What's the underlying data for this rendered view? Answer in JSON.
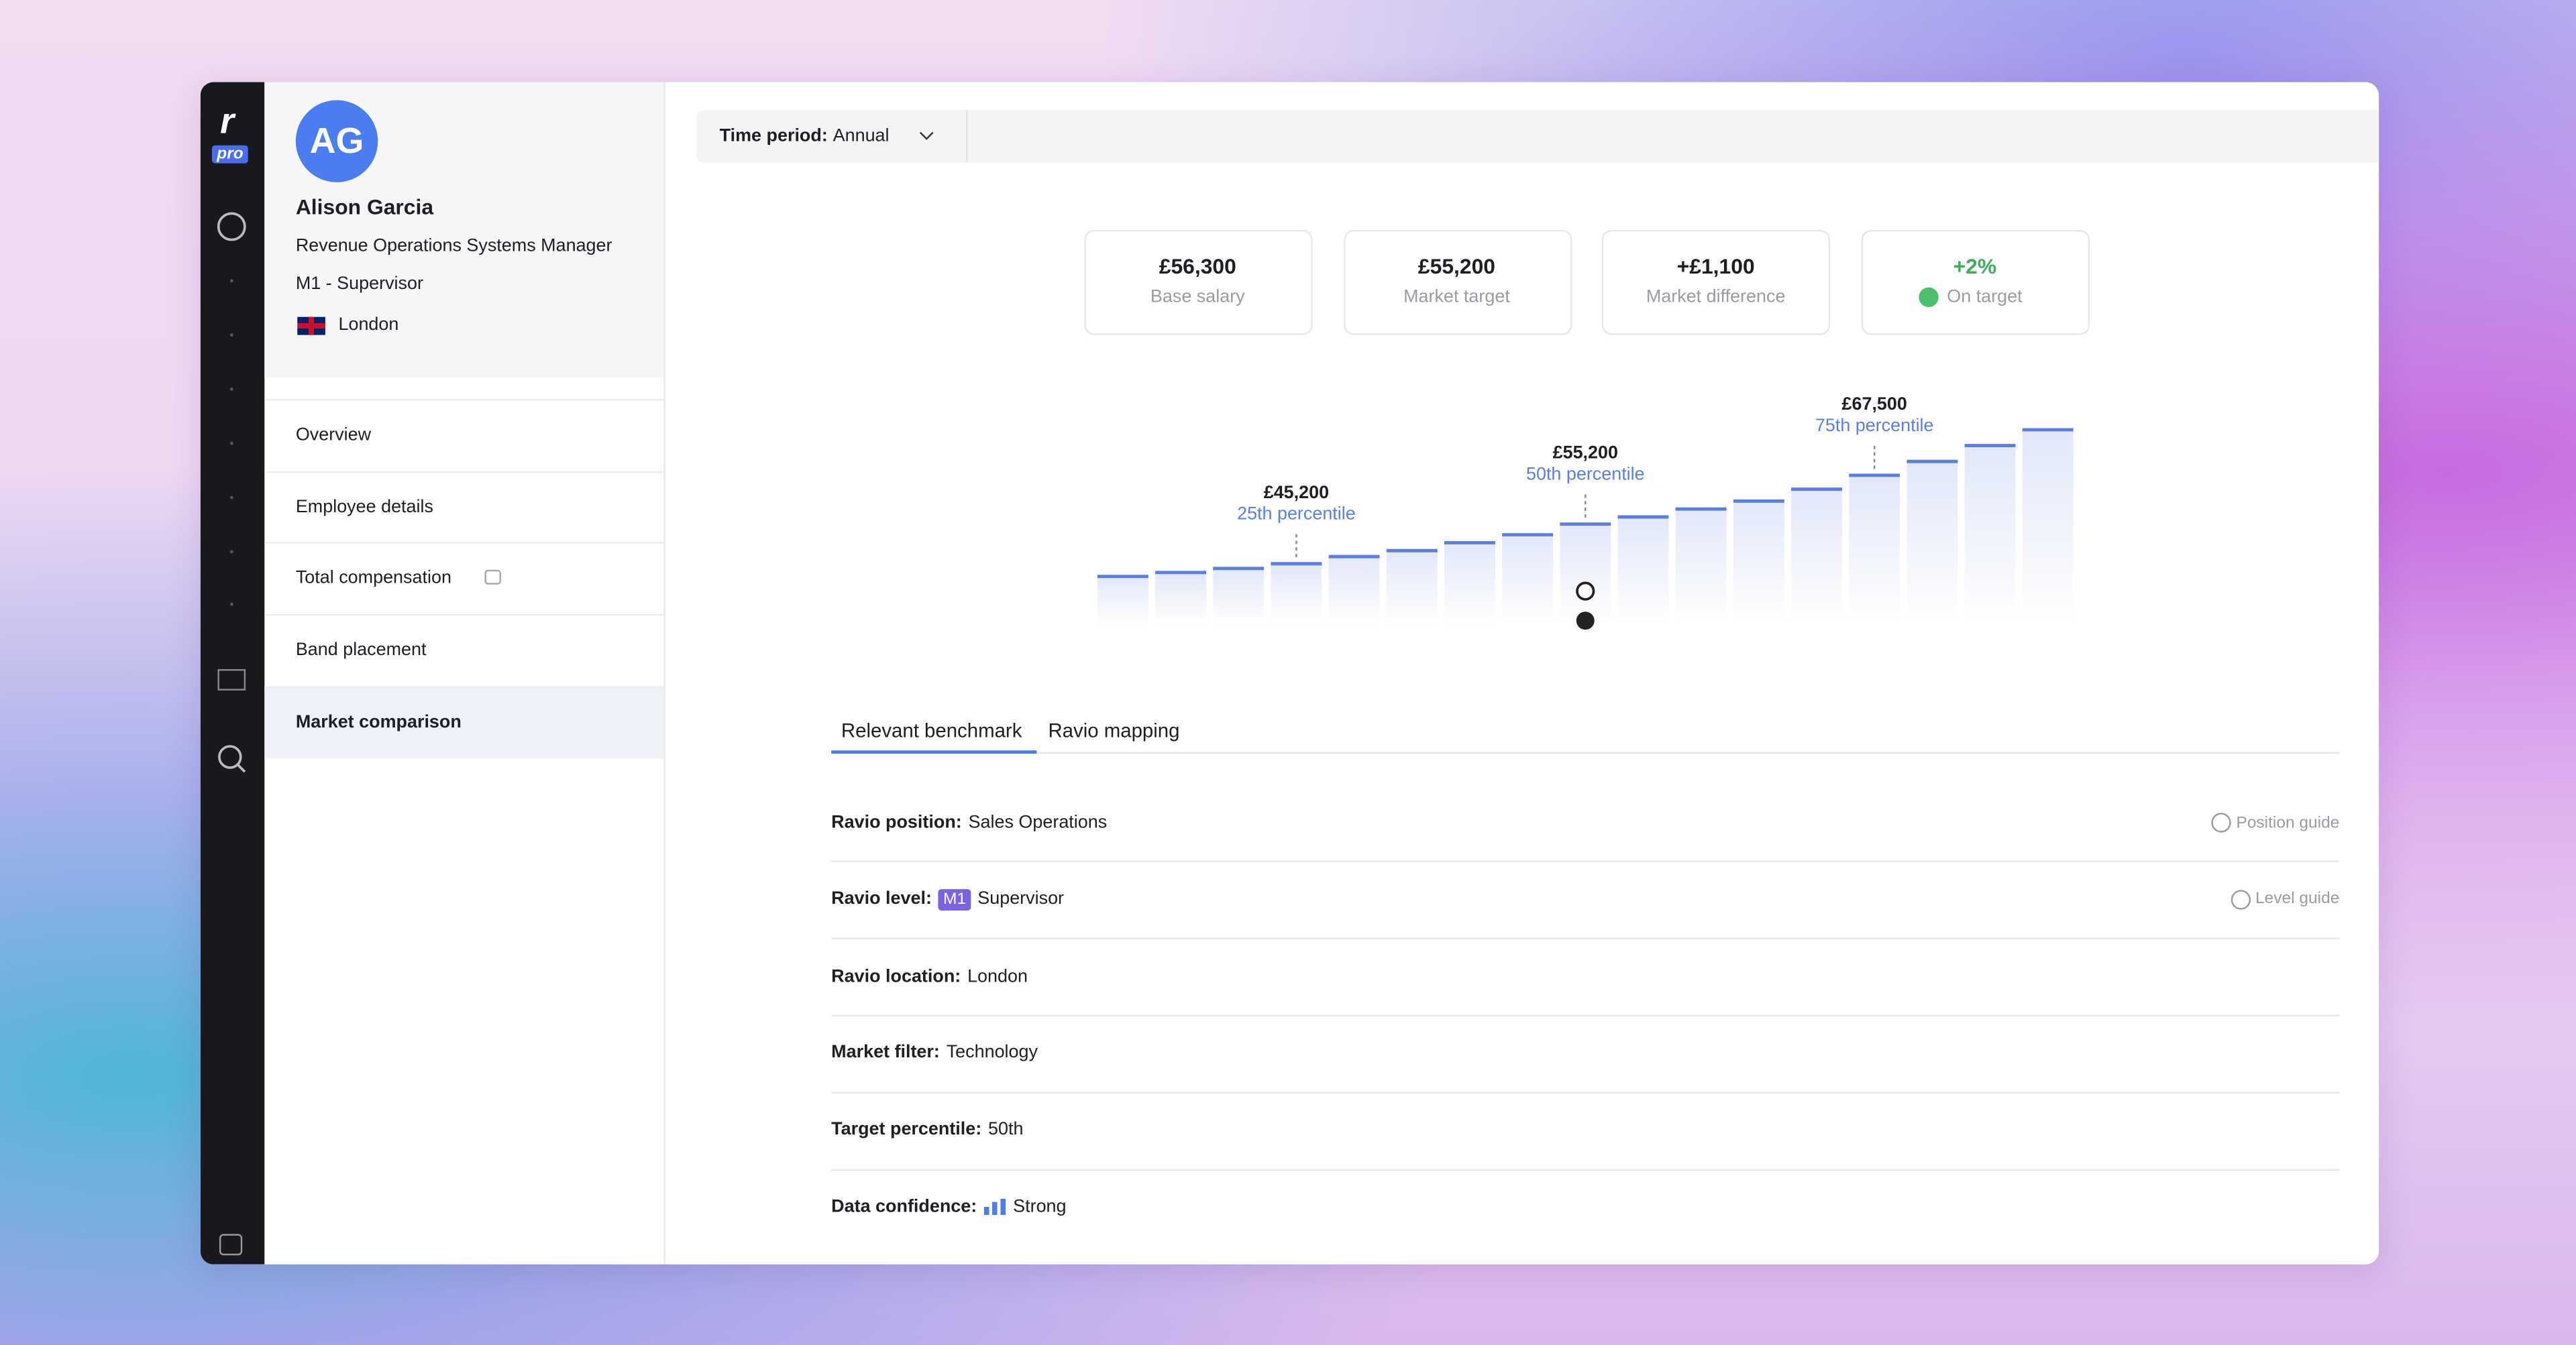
{
  "logo": {
    "mark": "r",
    "badge": "pro"
  },
  "profile": {
    "initials": "AG",
    "name": "Alison Garcia",
    "title": "Revenue Operations Systems Manager",
    "level": "M1 - Supervisor",
    "location": "London"
  },
  "nav": {
    "items": [
      {
        "label": "Overview"
      },
      {
        "label": "Employee details"
      },
      {
        "label": "Total compensation",
        "locked": true
      },
      {
        "label": "Band placement"
      },
      {
        "label": "Market comparison",
        "selected": true
      }
    ]
  },
  "toolbar": {
    "label": "Time period:",
    "value": "Annual"
  },
  "stats": [
    {
      "value": "£56,300",
      "label": "Base salary"
    },
    {
      "value": "£55,200",
      "label": "Market target"
    },
    {
      "value": "+£1,100",
      "label": "Market difference"
    },
    {
      "value": "+2%",
      "label": "On target",
      "status": "good"
    }
  ],
  "chart_data": {
    "type": "bar",
    "categories": [
      null,
      null,
      null,
      null,
      null,
      null,
      null,
      null,
      null,
      null,
      null,
      null,
      null,
      null,
      null,
      null,
      null
    ],
    "values": [
      42000,
      43000,
      44000,
      45200,
      47000,
      48500,
      50500,
      52500,
      55200,
      57000,
      59000,
      61000,
      64000,
      67500,
      71000,
      75000,
      79000
    ],
    "value_labels": [
      null,
      null,
      null,
      "£45,200",
      null,
      null,
      null,
      null,
      "£55,200",
      null,
      null,
      null,
      null,
      "£67,500",
      null,
      null,
      null
    ],
    "percentile_labels": [
      null,
      null,
      null,
      "25th percentile",
      null,
      null,
      null,
      null,
      "50th percentile",
      null,
      null,
      null,
      null,
      "75th percentile",
      null,
      null,
      null
    ],
    "color": "#5b7fe0",
    "ylim": [
      30000,
      88000
    ]
  },
  "tabs": {
    "items": [
      {
        "label": "Relevant benchmark",
        "active": true
      },
      {
        "label": "Ravio mapping"
      }
    ]
  },
  "details": [
    {
      "label": "Ravio position:",
      "value": "Sales Operations",
      "guide": "Position guide"
    },
    {
      "label": "Ravio level:",
      "badge": "M1",
      "value": "Supervisor",
      "guide": "Level guide"
    },
    {
      "label": "Ravio location:",
      "value": "London"
    },
    {
      "label": "Market filter:",
      "value": "Technology"
    },
    {
      "label": "Target percentile:",
      "value": "50th"
    },
    {
      "label": "Data confidence:",
      "value": "Strong",
      "icon": "signal"
    }
  ]
}
